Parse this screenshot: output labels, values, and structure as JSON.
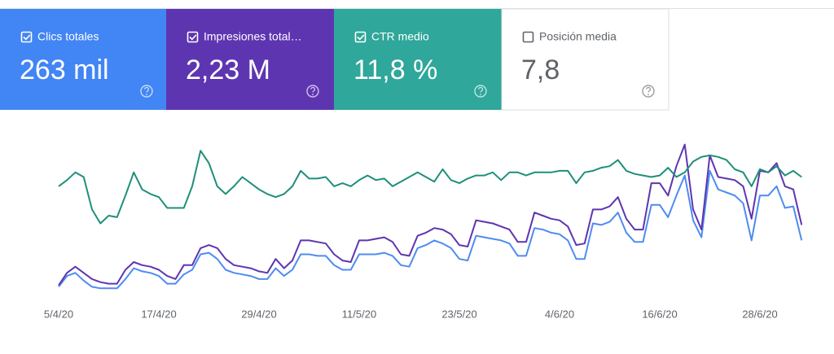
{
  "cards": [
    {
      "name": "Clics totales",
      "value": "263 mil",
      "color": "#4285f4",
      "selected": true
    },
    {
      "name": "Impresiones total…",
      "value": "2,23 M",
      "color": "#5e35b1",
      "selected": true
    },
    {
      "name": "CTR medio",
      "value": "11,8 %",
      "color": "#2fa79a",
      "selected": true
    },
    {
      "name": "Posición media",
      "value": "7,8",
      "color": "#ffffff",
      "selected": false
    }
  ],
  "chart_data": {
    "type": "line",
    "categories": [
      "5/4/20",
      null,
      null,
      null,
      null,
      null,
      null,
      null,
      null,
      null,
      null,
      null,
      "17/4/20",
      null,
      null,
      null,
      null,
      null,
      null,
      null,
      null,
      null,
      null,
      null,
      "29/4/20",
      null,
      null,
      null,
      null,
      null,
      null,
      null,
      null,
      null,
      null,
      null,
      "11/5/20",
      null,
      null,
      null,
      null,
      null,
      null,
      null,
      null,
      null,
      null,
      null,
      "23/5/20",
      null,
      null,
      null,
      null,
      null,
      null,
      null,
      null,
      null,
      null,
      null,
      "4/6/20",
      null,
      null,
      null,
      null,
      null,
      null,
      null,
      null,
      null,
      null,
      null,
      "16/6/20",
      null,
      null,
      null,
      null,
      null,
      null,
      null,
      null,
      null,
      null,
      null,
      "28/6/20",
      null,
      null,
      null,
      null,
      null
    ],
    "ylim": [
      0,
      100
    ],
    "series": [
      {
        "name": "Clics totales",
        "color": "#4e8cf0",
        "values": [
          4,
          11,
          13,
          8,
          4,
          3,
          3,
          3,
          9,
          16,
          14,
          13,
          11,
          6,
          6,
          12,
          15,
          25,
          26,
          22,
          15,
          13,
          12,
          11,
          9,
          9,
          16,
          11,
          15,
          25,
          25,
          24,
          24,
          18,
          15,
          15,
          25,
          25,
          25,
          26,
          24,
          18,
          17,
          29,
          31,
          34,
          32,
          29,
          22,
          21,
          37,
          36,
          35,
          34,
          32,
          24,
          24,
          42,
          41,
          39,
          38,
          34,
          22,
          22,
          45,
          44,
          46,
          52,
          39,
          33,
          33,
          57,
          57,
          49,
          63,
          76,
          47,
          36,
          79,
          67,
          65,
          63,
          58,
          34,
          63,
          63,
          69,
          55,
          56,
          34
        ]
      },
      {
        "name": "Impresiones total…",
        "color": "#5e35b1",
        "values": [
          5,
          13,
          17,
          13,
          9,
          7,
          6,
          6,
          15,
          20,
          18,
          17,
          15,
          11,
          9,
          18,
          18,
          29,
          31,
          29,
          22,
          18,
          17,
          16,
          14,
          13,
          22,
          16,
          21,
          34,
          34,
          33,
          32,
          25,
          21,
          20,
          34,
          34,
          35,
          36,
          33,
          25,
          24,
          37,
          39,
          42,
          41,
          38,
          31,
          30,
          47,
          46,
          45,
          43,
          41,
          33,
          33,
          52,
          50,
          48,
          47,
          43,
          31,
          32,
          54,
          54,
          56,
          62,
          48,
          41,
          41,
          71,
          71,
          63,
          82,
          96,
          54,
          41,
          89,
          75,
          74,
          73,
          69,
          48,
          79,
          78,
          84,
          69,
          67,
          44
        ]
      },
      {
        "name": "CTR medio",
        "color": "#1e8f7a",
        "values": [
          69,
          73,
          78,
          75,
          54,
          45,
          50,
          49,
          63,
          78,
          67,
          64,
          62,
          55,
          55,
          55,
          69,
          92,
          84,
          69,
          64,
          69,
          75,
          71,
          67,
          64,
          62,
          64,
          69,
          79,
          74,
          74,
          75,
          69,
          71,
          69,
          73,
          76,
          73,
          74,
          69,
          72,
          75,
          78,
          75,
          72,
          80,
          73,
          71,
          74,
          76,
          76,
          78,
          73,
          78,
          78,
          76,
          78,
          78,
          78,
          79,
          79,
          71,
          78,
          79,
          81,
          82,
          86,
          79,
          77,
          76,
          75,
          76,
          81,
          75,
          78,
          85,
          88,
          89,
          88,
          86,
          80,
          78,
          69,
          80,
          78,
          82,
          76,
          79,
          75
        ]
      }
    ]
  }
}
